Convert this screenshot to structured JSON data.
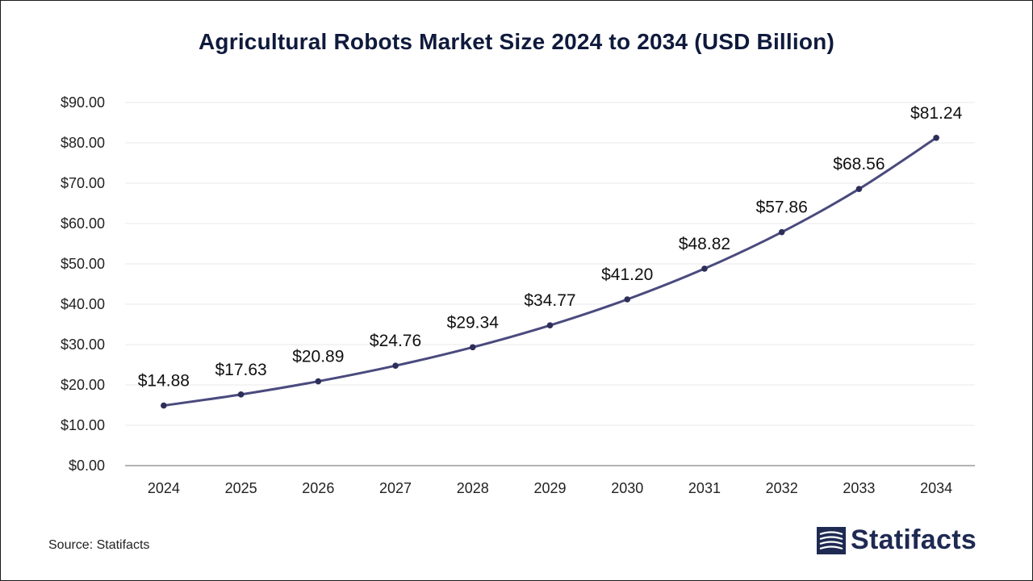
{
  "chart_data": {
    "type": "line",
    "title": "Agricultural Robots Market Size 2024 to 2034 (USD Billion)",
    "categories": [
      "2024",
      "2025",
      "2026",
      "2027",
      "2028",
      "2029",
      "2030",
      "2031",
      "2032",
      "2033",
      "2034"
    ],
    "series": [
      {
        "values": [
          14.88,
          17.63,
          20.89,
          24.76,
          29.34,
          34.77,
          41.2,
          48.82,
          57.86,
          68.56,
          81.24
        ],
        "data_labels": [
          "$14.88",
          "$17.63",
          "$20.89",
          "$24.76",
          "$29.34",
          "$34.77",
          "$41.20",
          "$48.82",
          "$57.86",
          "$68.56",
          "$81.24"
        ],
        "color": "#4a4a7e"
      }
    ],
    "y_ticks": [
      "$0.00",
      "$10.00",
      "$20.00",
      "$30.00",
      "$40.00",
      "$50.00",
      "$60.00",
      "$70.00",
      "$80.00",
      "$90.00"
    ],
    "ylim": [
      0,
      90
    ],
    "y_step": 10,
    "xlabel": "",
    "ylabel": "",
    "grid": true,
    "gridline_color": "#e8e8e8",
    "axis_color": "#9a9a9a",
    "marker_color": "#2e2e5a"
  },
  "footer": {
    "source": "Source: Statifacts",
    "brand": "Statifacts",
    "brand_color": "#1f2a52"
  }
}
